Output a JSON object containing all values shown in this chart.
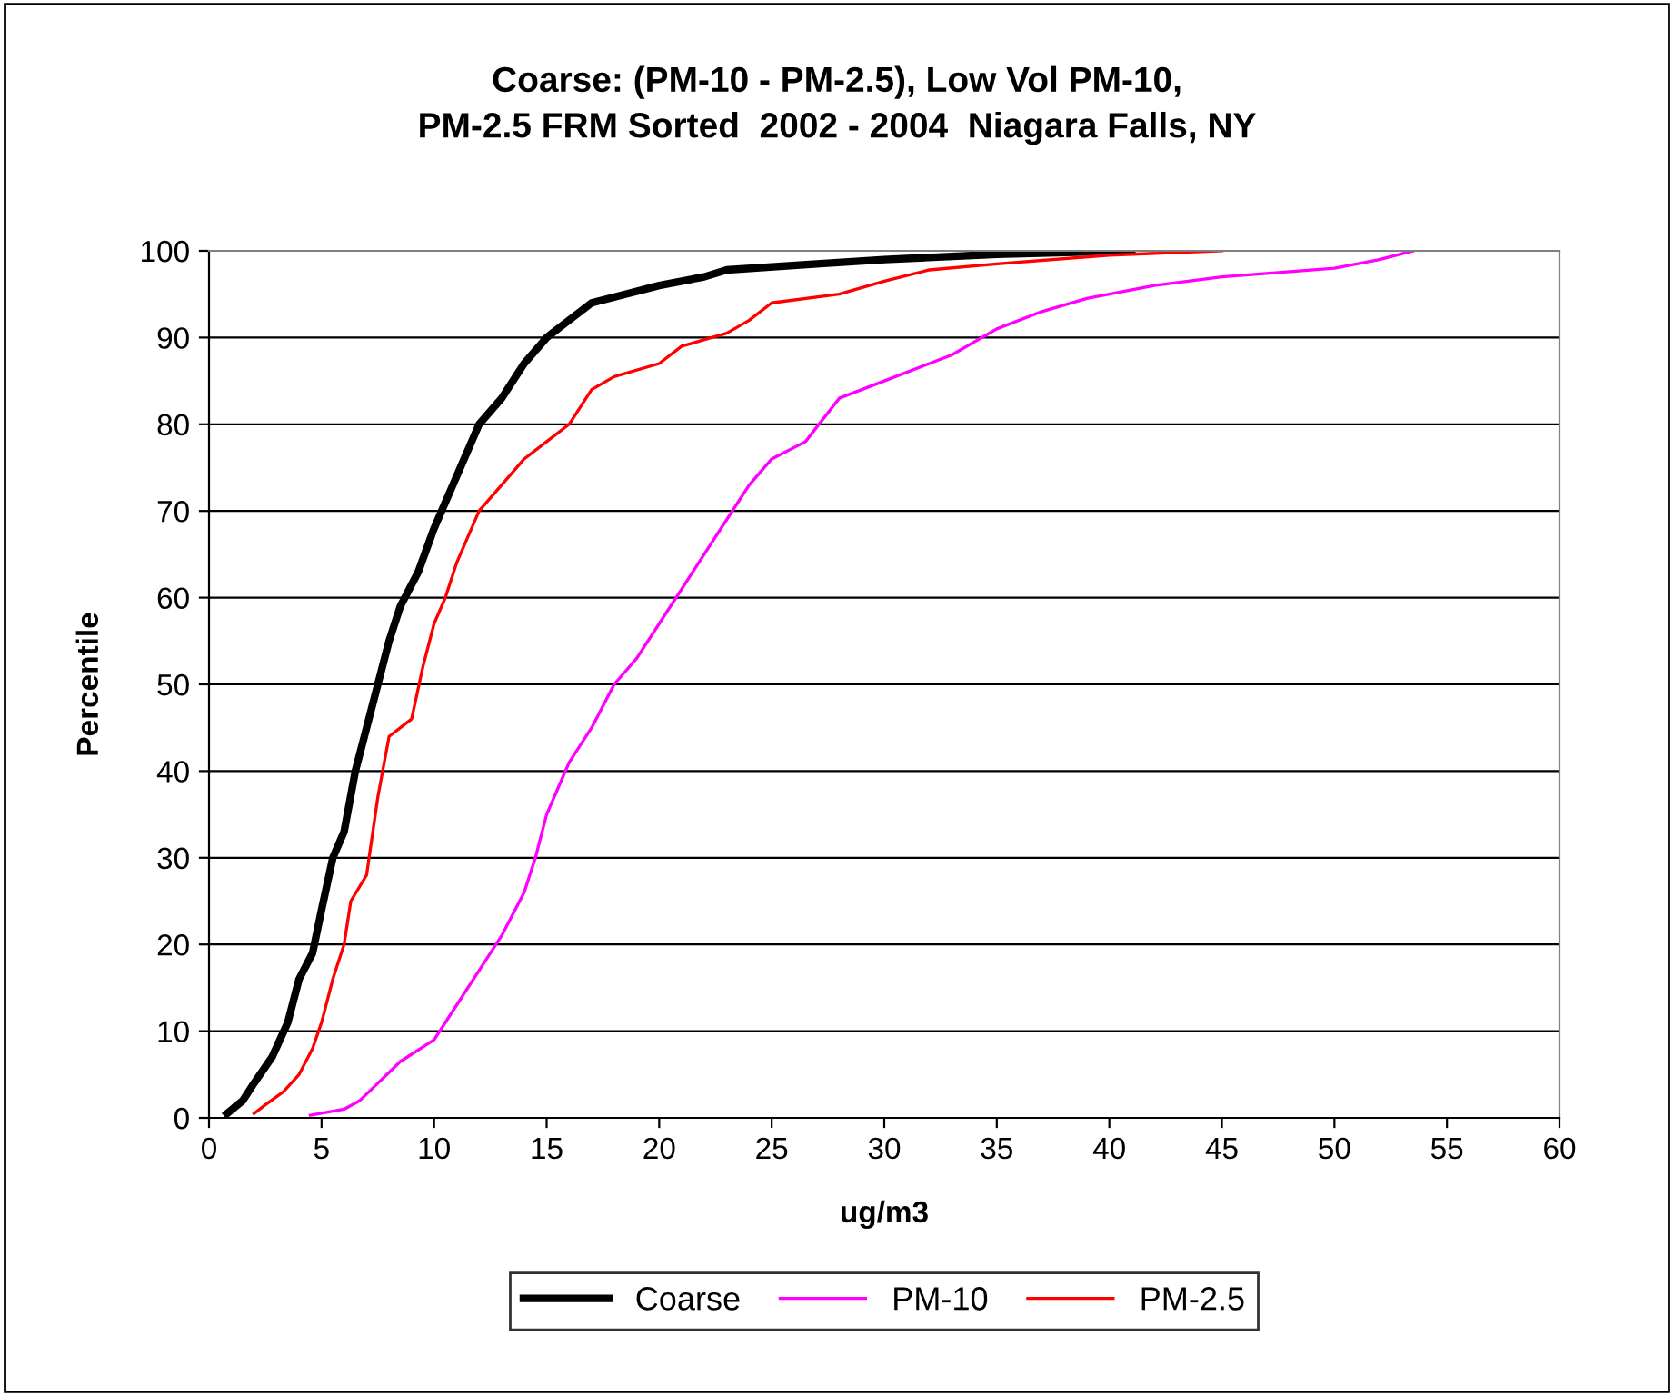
{
  "chart_data": {
    "type": "line",
    "title": "Coarse: (PM-10 - PM-2.5), Low Vol PM-10,\nPM-2.5 FRM Sorted  2002 - 2004  Niagara Falls, NY",
    "xlabel": "ug/m3",
    "ylabel": "Percentile",
    "xlim": [
      0,
      60
    ],
    "xticks": [
      0,
      5,
      10,
      15,
      20,
      25,
      30,
      35,
      40,
      45,
      50,
      55,
      60
    ],
    "ylim": [
      0,
      100
    ],
    "yticks": [
      0,
      10,
      20,
      30,
      40,
      50,
      60,
      70,
      80,
      90,
      100
    ],
    "grid": "y",
    "legend": "bottom",
    "marker": "none",
    "line_style": "solid",
    "series": [
      {
        "name": "Coarse",
        "color": "#000000",
        "x": [
          0.8,
          1.5,
          2,
          2.8,
          3.5,
          4,
          4.6,
          5,
          5.5,
          6,
          6.5,
          7,
          7.5,
          8,
          8.5,
          9.3,
          10,
          11,
          12,
          13,
          14,
          15,
          16,
          17,
          18.5,
          20,
          22,
          23,
          27,
          30,
          35,
          41
        ],
        "values": [
          0.5,
          2,
          4,
          7,
          11,
          16,
          19,
          24,
          30,
          33,
          40,
          45,
          50,
          55,
          59,
          63,
          68,
          74,
          80,
          83,
          87,
          90,
          92,
          94,
          95,
          96,
          97,
          97.8,
          98.5,
          99,
          99.6,
          100
        ]
      },
      {
        "name": "PM-10",
        "color": "#ff00ff",
        "x": [
          4.5,
          6,
          6.7,
          7.5,
          8.5,
          10,
          11,
          12,
          13,
          14,
          14.5,
          15,
          15.5,
          16,
          17,
          18,
          19,
          20,
          21,
          22,
          23,
          24,
          25,
          26.5,
          28,
          30,
          32,
          33,
          35,
          37,
          39,
          42,
          45,
          50,
          52,
          53.5
        ],
        "values": [
          0.3,
          1,
          2,
          4,
          6.5,
          9,
          13,
          17,
          21,
          26,
          30,
          35,
          38,
          41,
          45,
          50,
          53,
          57,
          61,
          65,
          69,
          73,
          76,
          78,
          83,
          85,
          87,
          88,
          91,
          93,
          94.5,
          96,
          97,
          98,
          99,
          100
        ]
      },
      {
        "name": "PM-2.5",
        "color": "#ff0000",
        "x": [
          2,
          2.5,
          3.3,
          4,
          4.6,
          5,
          5.5,
          6,
          6.3,
          7,
          7.5,
          8,
          9,
          9.5,
          10,
          10.5,
          11,
          12,
          13,
          14,
          15,
          16,
          17,
          18,
          20,
          21,
          23,
          24,
          25,
          28,
          30,
          32,
          35,
          40,
          45
        ],
        "values": [
          0.5,
          1.5,
          3,
          5,
          8,
          11,
          16,
          20,
          25,
          28,
          37,
          44,
          46,
          52,
          57,
          60,
          64,
          70,
          73,
          76,
          78,
          80,
          84,
          85.5,
          87,
          89,
          90.5,
          92,
          94,
          95,
          96.5,
          97.8,
          98.5,
          99.5,
          100
        ]
      }
    ]
  }
}
